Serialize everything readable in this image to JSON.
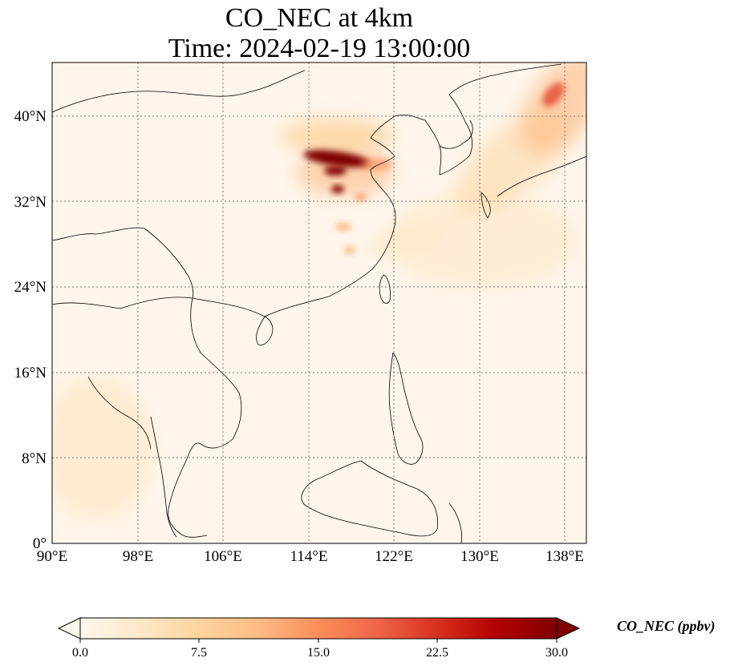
{
  "title": {
    "line1": "CO_NEC at 4km",
    "line2": "Time: 2024-02-19 13:00:00"
  },
  "map": {
    "lon_range": [
      90,
      140
    ],
    "lat_range": [
      0,
      45
    ],
    "lon_ticks": [
      "90°E",
      "98°E",
      "106°E",
      "114°E",
      "122°E",
      "130°E",
      "138°E"
    ],
    "lat_ticks": [
      "0°",
      "8°N",
      "16°N",
      "24°N",
      "32°N",
      "40°N"
    ],
    "gridlines": true,
    "coastline_color": "#000000",
    "field_name": "CO_NEC",
    "field_units": "ppbv"
  },
  "colorbar": {
    "label": "CO_NEC (ppbv)",
    "ticks": [
      "0.0",
      "7.5",
      "15.0",
      "22.5",
      "30.0"
    ],
    "range": [
      0,
      30
    ],
    "colormap": "OrRd",
    "colors": [
      "#fff7ec",
      "#fee8c8",
      "#fdd49e",
      "#fdbb84",
      "#fc8d59",
      "#ef6548",
      "#d7301f",
      "#b30000",
      "#7f0000"
    ],
    "extend": "both"
  }
}
